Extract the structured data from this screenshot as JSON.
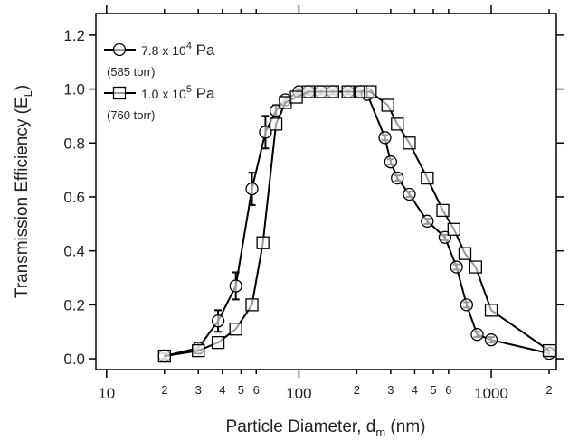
{
  "chart_data": {
    "type": "line",
    "x_label": "Particle Diameter, d",
    "x_label_sub": "m",
    "x_label_end": " (nm)",
    "y_label": "Transmission Efficiency (E",
    "y_label_sub": "L",
    "y_label_end": ")",
    "x_log": true,
    "xlim": [
      8.8,
      2180
    ],
    "ylim": [
      -0.04,
      1.28
    ],
    "xticks": [
      {
        "value": 10,
        "label": "10"
      },
      {
        "value": 20,
        "label": "2"
      },
      {
        "value": 30,
        "label": "3"
      },
      {
        "value": 40,
        "label": "4"
      },
      {
        "value": 50,
        "label": "5"
      },
      {
        "value": 60,
        "label": "6"
      },
      {
        "value": 100,
        "label": "100"
      },
      {
        "value": 200,
        "label": "2"
      },
      {
        "value": 300,
        "label": "3"
      },
      {
        "value": 400,
        "label": "4"
      },
      {
        "value": 500,
        "label": "5"
      },
      {
        "value": 600,
        "label": "6"
      },
      {
        "value": 1000,
        "label": "1000"
      },
      {
        "value": 2000,
        "label": "2"
      }
    ],
    "yticks": [
      {
        "value": 0,
        "label": "0.0"
      },
      0.2,
      0.4,
      0.6,
      0.8,
      {
        "value": 1,
        "label": "1.0"
      },
      1.2
    ],
    "series": [
      {
        "name": "7.8 x 10",
        "name_sup": "4",
        "name_end": " Pa",
        "note": "(585 torr)",
        "marker": "circle",
        "color": "#000000",
        "x": [
          20,
          30,
          38,
          47,
          57,
          67,
          76,
          85,
          100,
          112,
          130,
          150,
          180,
          210,
          227,
          280,
          300,
          325,
          375,
          465,
          575,
          660,
          745,
          845,
          1000,
          2000
        ],
        "values": [
          0.01,
          0.04,
          0.14,
          0.27,
          0.63,
          0.84,
          0.92,
          0.96,
          0.99,
          0.99,
          0.99,
          0.99,
          0.99,
          0.99,
          0.98,
          0.82,
          0.73,
          0.67,
          0.61,
          0.51,
          0.45,
          0.34,
          0.2,
          0.09,
          0.07,
          0.02
        ],
        "errors": [
          0.01,
          0.02,
          0.04,
          0.05,
          0.06,
          0.06,
          0.02,
          0.01,
          0.01,
          0.01,
          0.01,
          0.01,
          0.01,
          0.01,
          0.01,
          0.01,
          0.01,
          0.01,
          0.01,
          0.01,
          0.01,
          0.01,
          0.01,
          0.01,
          0.01,
          0.01
        ]
      },
      {
        "name": "1.0 x 10",
        "name_sup": "5",
        "name_end": " Pa",
        "note": "(760 torr)",
        "marker": "square",
        "color": "#000000",
        "x": [
          20,
          30,
          38,
          47,
          57,
          65,
          76,
          85,
          97,
          112,
          130,
          150,
          180,
          210,
          235,
          290,
          325,
          375,
          465,
          560,
          640,
          730,
          830,
          1000,
          2000
        ],
        "values": [
          0.01,
          0.03,
          0.06,
          0.11,
          0.2,
          0.43,
          0.87,
          0.95,
          0.97,
          0.99,
          0.99,
          0.99,
          0.99,
          0.99,
          0.99,
          0.94,
          0.87,
          0.8,
          0.67,
          0.55,
          0.48,
          0.39,
          0.34,
          0.18,
          0.03
        ]
      }
    ]
  }
}
